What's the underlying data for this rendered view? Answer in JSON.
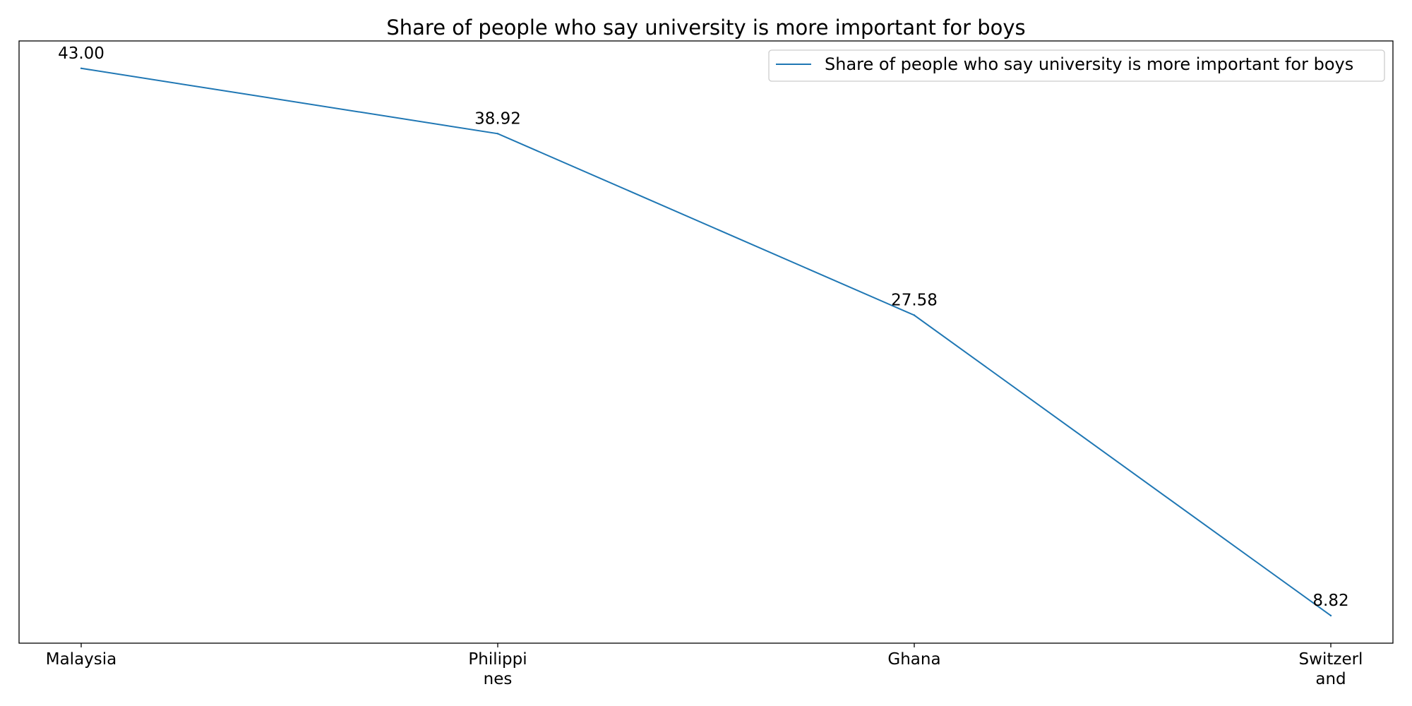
{
  "chart_data": {
    "type": "line",
    "title": "Share of people who say university is more important for boys",
    "xlabel": "",
    "ylabel": "",
    "categories": [
      "Malaysia",
      "Philippines",
      "Ghana",
      "Switzerland"
    ],
    "category_labels": [
      [
        "Malaysia"
      ],
      [
        "Philippi",
        "nes"
      ],
      [
        "Ghana"
      ],
      [
        "Switzerl",
        "and"
      ]
    ],
    "series": [
      {
        "name": "Share of people who say university is more important for boys",
        "values": [
          43.0,
          38.92,
          27.58,
          8.82
        ],
        "labels": [
          "43.00",
          "38.92",
          "27.58",
          "8.82"
        ],
        "color": "#1f77b4"
      }
    ],
    "ylim": [
      7.1,
      44.71
    ],
    "grid": false,
    "legend_position": "top-right",
    "y_ticks_visible": false
  }
}
